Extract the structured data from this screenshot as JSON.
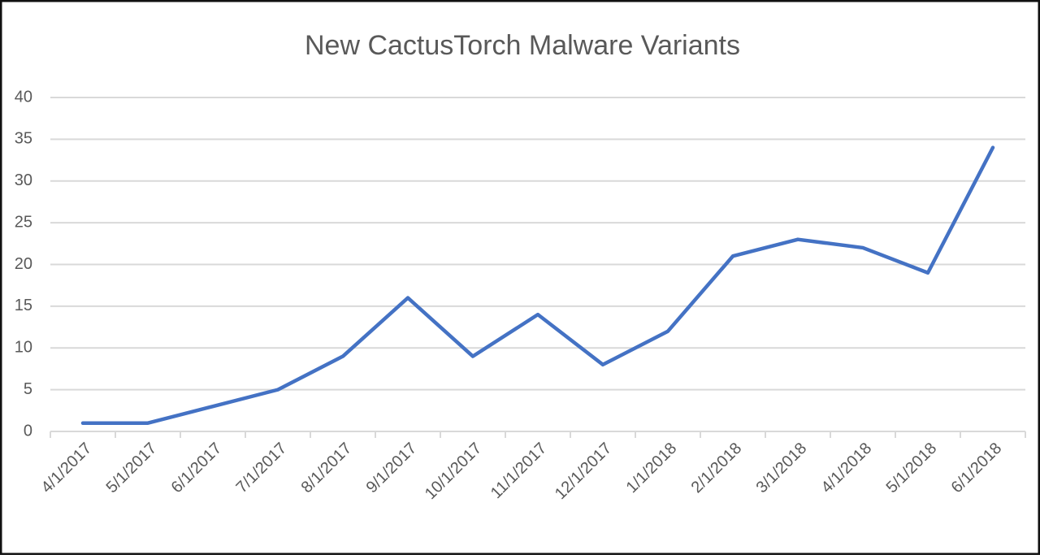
{
  "chart_data": {
    "type": "line",
    "title": "New CactusTorch Malware Variants",
    "categories": [
      "4/1/2017",
      "5/1/2017",
      "6/1/2017",
      "7/1/2017",
      "8/1/2017",
      "9/1/2017",
      "10/1/2017",
      "11/1/2017",
      "12/1/2017",
      "1/1/2018",
      "2/1/2018",
      "3/1/2018",
      "4/1/2018",
      "5/1/2018",
      "6/1/2018"
    ],
    "values": [
      1,
      1,
      3,
      5,
      9,
      16,
      9,
      14,
      8,
      12,
      21,
      23,
      22,
      19,
      34
    ],
    "color": "#4472c4",
    "ylim": [
      0,
      40
    ],
    "yticks": [
      0,
      5,
      10,
      15,
      20,
      25,
      30,
      35,
      40
    ],
    "grid": true
  }
}
